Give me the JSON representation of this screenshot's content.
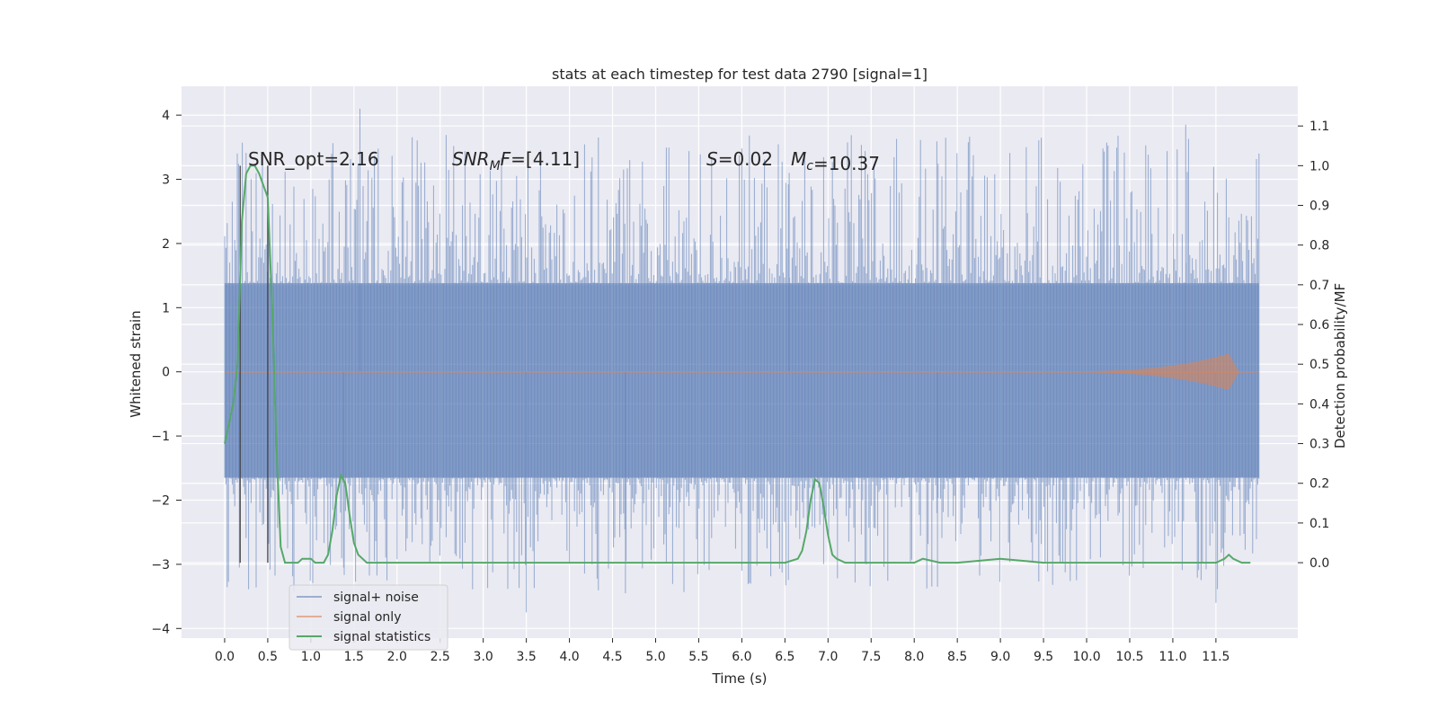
{
  "chart_data": {
    "type": "line",
    "title": "stats at each timestep for test data 2790 [signal=1]",
    "xlabel": "Time (s)",
    "ylabel": "Whitened strain",
    "y2label": "Detection probability/MF",
    "xlim": [
      -0.5,
      12.45
    ],
    "ylim": [
      -4.15,
      4.45
    ],
    "y2lim": [
      -0.19,
      1.2
    ],
    "x_ticks": [
      0.0,
      0.5,
      1.0,
      1.5,
      2.0,
      2.5,
      3.0,
      3.5,
      4.0,
      4.5,
      5.0,
      5.5,
      6.0,
      6.5,
      7.0,
      7.5,
      8.0,
      8.5,
      9.0,
      9.5,
      10.0,
      10.5,
      11.0,
      11.5
    ],
    "x_tick_labels": [
      "0.0",
      "0.5",
      "1.0",
      "1.5",
      "2.0",
      "2.5",
      "3.0",
      "3.5",
      "4.0",
      "4.5",
      "5.0",
      "5.5",
      "6.0",
      "6.5",
      "7.0",
      "7.5",
      "8.0",
      "8.5",
      "9.0",
      "9.5",
      "10.0",
      "10.5",
      "11.0",
      "11.5"
    ],
    "y_ticks": [
      -4,
      -3,
      -2,
      -1,
      0,
      1,
      2,
      3,
      4
    ],
    "y_tick_labels": [
      "−4",
      "−3",
      "−2",
      "−1",
      "0",
      "1",
      "2",
      "3",
      "4"
    ],
    "y2_ticks": [
      0.0,
      0.1,
      0.2,
      0.3,
      0.4,
      0.5,
      0.6,
      0.7,
      0.8,
      0.9,
      1.0,
      1.1
    ],
    "y2_tick_labels": [
      "0.0",
      "0.1",
      "0.2",
      "0.3",
      "0.4",
      "0.5",
      "0.6",
      "0.7",
      "0.8",
      "0.9",
      "1.0",
      "1.1"
    ],
    "grid": true,
    "legend_position": "lower-left",
    "annotations": {
      "snr_opt": "SNR_opt=2.16",
      "snr_mf": "SNR_MF=[4.11]",
      "s_value": "S=0.02",
      "mc_value": "M_c=10.37"
    },
    "vertical_lines_x": [
      0.18,
      0.5
    ],
    "noise_envelope": {
      "x_start": 0.0,
      "x_end": 12.0,
      "dense_band": [
        -1.65,
        1.38
      ],
      "peak_max": 4.1,
      "peak_min": -3.75
    },
    "signal_only": {
      "x_start": 0.0,
      "x_end": 12.0,
      "chirp_start": 9.5,
      "chirp_peak_x": 11.65,
      "chirp_peak_amplitude": 0.28
    },
    "series": [
      {
        "name": "signal+ noise",
        "color": "#4c72b0"
      },
      {
        "name": "signal only",
        "color": "#dd8452"
      },
      {
        "name": "signal statistics",
        "color": "#55a868",
        "axis": "right",
        "x": [
          0.0,
          0.1,
          0.15,
          0.2,
          0.25,
          0.3,
          0.35,
          0.4,
          0.45,
          0.5,
          0.55,
          0.6,
          0.65,
          0.7,
          0.75,
          0.8,
          0.85,
          0.9,
          0.95,
          1.0,
          1.05,
          1.1,
          1.15,
          1.2,
          1.25,
          1.3,
          1.35,
          1.4,
          1.45,
          1.5,
          1.55,
          1.6,
          1.65,
          1.7,
          1.8,
          2.0,
          2.5,
          3.0,
          3.5,
          4.0,
          4.5,
          5.0,
          5.5,
          6.0,
          6.3,
          6.5,
          6.65,
          6.7,
          6.75,
          6.8,
          6.85,
          6.9,
          6.95,
          7.0,
          7.05,
          7.1,
          7.2,
          7.5,
          8.0,
          8.1,
          8.3,
          8.5,
          9.0,
          9.5,
          10.0,
          10.5,
          11.0,
          11.5,
          11.6,
          11.65,
          11.7,
          11.8,
          11.9
        ],
        "values": [
          0.3,
          0.4,
          0.5,
          0.86,
          0.98,
          1.0,
          1.0,
          0.98,
          0.95,
          0.92,
          0.65,
          0.3,
          0.04,
          0.0,
          0.0,
          0.0,
          0.0,
          0.01,
          0.01,
          0.01,
          0.0,
          0.0,
          0.0,
          0.02,
          0.08,
          0.17,
          0.22,
          0.2,
          0.12,
          0.05,
          0.02,
          0.01,
          0.0,
          0.0,
          0.0,
          0.0,
          0.0,
          0.0,
          0.0,
          0.0,
          0.0,
          0.0,
          0.0,
          0.0,
          0.0,
          0.0,
          0.01,
          0.03,
          0.08,
          0.16,
          0.21,
          0.2,
          0.14,
          0.07,
          0.02,
          0.01,
          0.0,
          0.0,
          0.0,
          0.01,
          0.0,
          0.0,
          0.01,
          0.0,
          0.0,
          0.0,
          0.0,
          0.0,
          0.01,
          0.02,
          0.01,
          0.0,
          0.0
        ]
      }
    ]
  }
}
